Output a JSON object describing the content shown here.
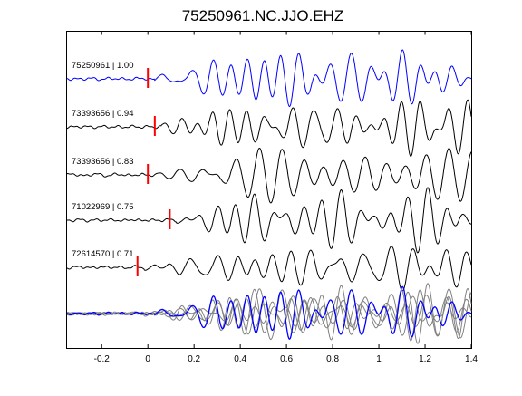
{
  "chart_data": {
    "type": "line",
    "title": "75250961.NC.JJO.EHZ",
    "xlabel": "",
    "ylabel": "",
    "xlim": [
      -0.35,
      1.4
    ],
    "xticks": [
      "-0.2",
      "0",
      "0.2",
      "0.4",
      "0.6",
      "0.8",
      "1",
      "1.2",
      "1.4"
    ],
    "xtick_values": [
      -0.2,
      0,
      0.2,
      0.4,
      0.6,
      0.8,
      1.0,
      1.2,
      1.4
    ],
    "grid": false,
    "series": [
      {
        "label": "75250961 | 1.00",
        "color": "#0000ff",
        "pick": 0.0
      },
      {
        "label": "73393656 | 0.94",
        "color": "#000000",
        "pick": 0.03
      },
      {
        "label": "73393656 | 0.83",
        "color": "#000000",
        "pick": 0.0
      },
      {
        "label": "71022969 | 0.75",
        "color": "#000000",
        "pick": 0.095
      },
      {
        "label": "72614570 | 0.71",
        "color": "#000000",
        "pick": -0.045
      }
    ],
    "stack": {
      "reference_color": "#0000ff",
      "others_color": "#808080"
    },
    "pick_color": "#ff0000"
  }
}
